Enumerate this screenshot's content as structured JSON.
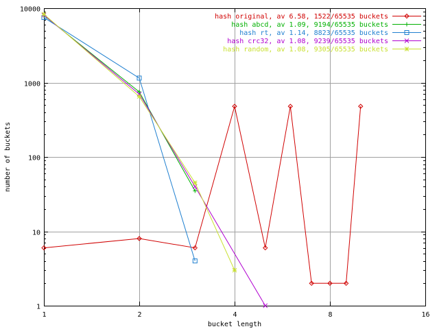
{
  "chart_data": {
    "type": "line",
    "title": "",
    "xlabel": "bucket length",
    "ylabel": "number of buckets",
    "xscale": "log2",
    "yscale": "log10",
    "xlim": [
      1,
      16
    ],
    "ylim": [
      1,
      10000
    ],
    "grid": true,
    "legend_position": "top-right",
    "x_ticks": [
      {
        "value": 1,
        "label": "1"
      },
      {
        "value": 2,
        "label": "2"
      },
      {
        "value": 4,
        "label": "4"
      },
      {
        "value": 8,
        "label": "8"
      },
      {
        "value": 16,
        "label": "16"
      }
    ],
    "y_ticks": [
      {
        "value": 1,
        "label": "1"
      },
      {
        "value": 10,
        "label": "10"
      },
      {
        "value": 100,
        "label": "100"
      },
      {
        "value": 1000,
        "label": "1000"
      },
      {
        "value": 10000,
        "label": "10000"
      }
    ],
    "series": [
      {
        "name": "hash original, av 6.58, 1522/65535 buckets",
        "color": "#d00000",
        "marker": "diamond",
        "x": [
          1,
          2,
          3,
          4,
          5,
          6,
          7,
          8,
          9,
          10
        ],
        "y": [
          6,
          8,
          6,
          480,
          6,
          480,
          2,
          2,
          2,
          480
        ]
      },
      {
        "name": "hash abcd, av 1.09, 9194/65535 buckets",
        "color": "#00b000",
        "marker": "plus",
        "x": [
          1,
          2,
          3
        ],
        "y": [
          8000,
          750,
          35
        ]
      },
      {
        "name": "hash rt, av 1.14, 8823/65535 buckets",
        "color": "#2080d0",
        "marker": "square",
        "x": [
          1,
          2,
          3
        ],
        "y": [
          7500,
          1150,
          4
        ]
      },
      {
        "name": "hash crc32, av 1.08, 9239/65535 buckets",
        "color": "#b000d0",
        "marker": "cross",
        "x": [
          1,
          2,
          3,
          5
        ],
        "y": [
          8100,
          700,
          40,
          1
        ]
      },
      {
        "name": "hash random, av 1.08, 9305/65535 buckets",
        "color": "#c8e030",
        "marker": "asterisk",
        "x": [
          1,
          2,
          3,
          4
        ],
        "y": [
          8300,
          650,
          45,
          3
        ]
      }
    ]
  }
}
